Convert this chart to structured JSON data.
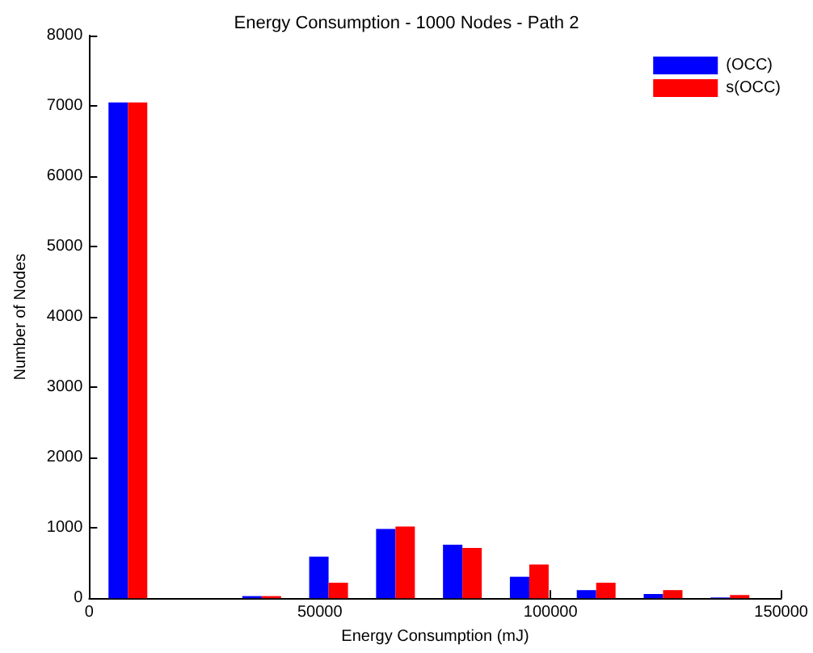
{
  "chart_data": {
    "type": "bar",
    "title": "Energy Consumption - 1000 Nodes - Path 2",
    "xlabel": "Energy Consumption (mJ)",
    "ylabel": "Number of Nodes",
    "x": [
      8400,
      22900,
      37400,
      51900,
      66400,
      80900,
      95400,
      109900,
      124400,
      138900
    ],
    "series": [
      {
        "name": "(OCC)",
        "color": "#0000ff",
        "values": [
          7050,
          0,
          30,
          590,
          985,
          760,
          305,
          115,
          60,
          10
        ]
      },
      {
        "name": "s(OCC)",
        "color": "#ff0000",
        "values": [
          7050,
          0,
          30,
          220,
          1020,
          715,
          480,
          220,
          115,
          45
        ]
      }
    ],
    "xlim": [
      0,
      150000
    ],
    "xticks": [
      0,
      50000,
      100000,
      150000
    ],
    "ylim": [
      0,
      8000
    ],
    "yticks": [
      0,
      1000,
      2000,
      3000,
      4000,
      5000,
      6000,
      7000,
      8000
    ],
    "grid": false,
    "legend": "top right"
  }
}
